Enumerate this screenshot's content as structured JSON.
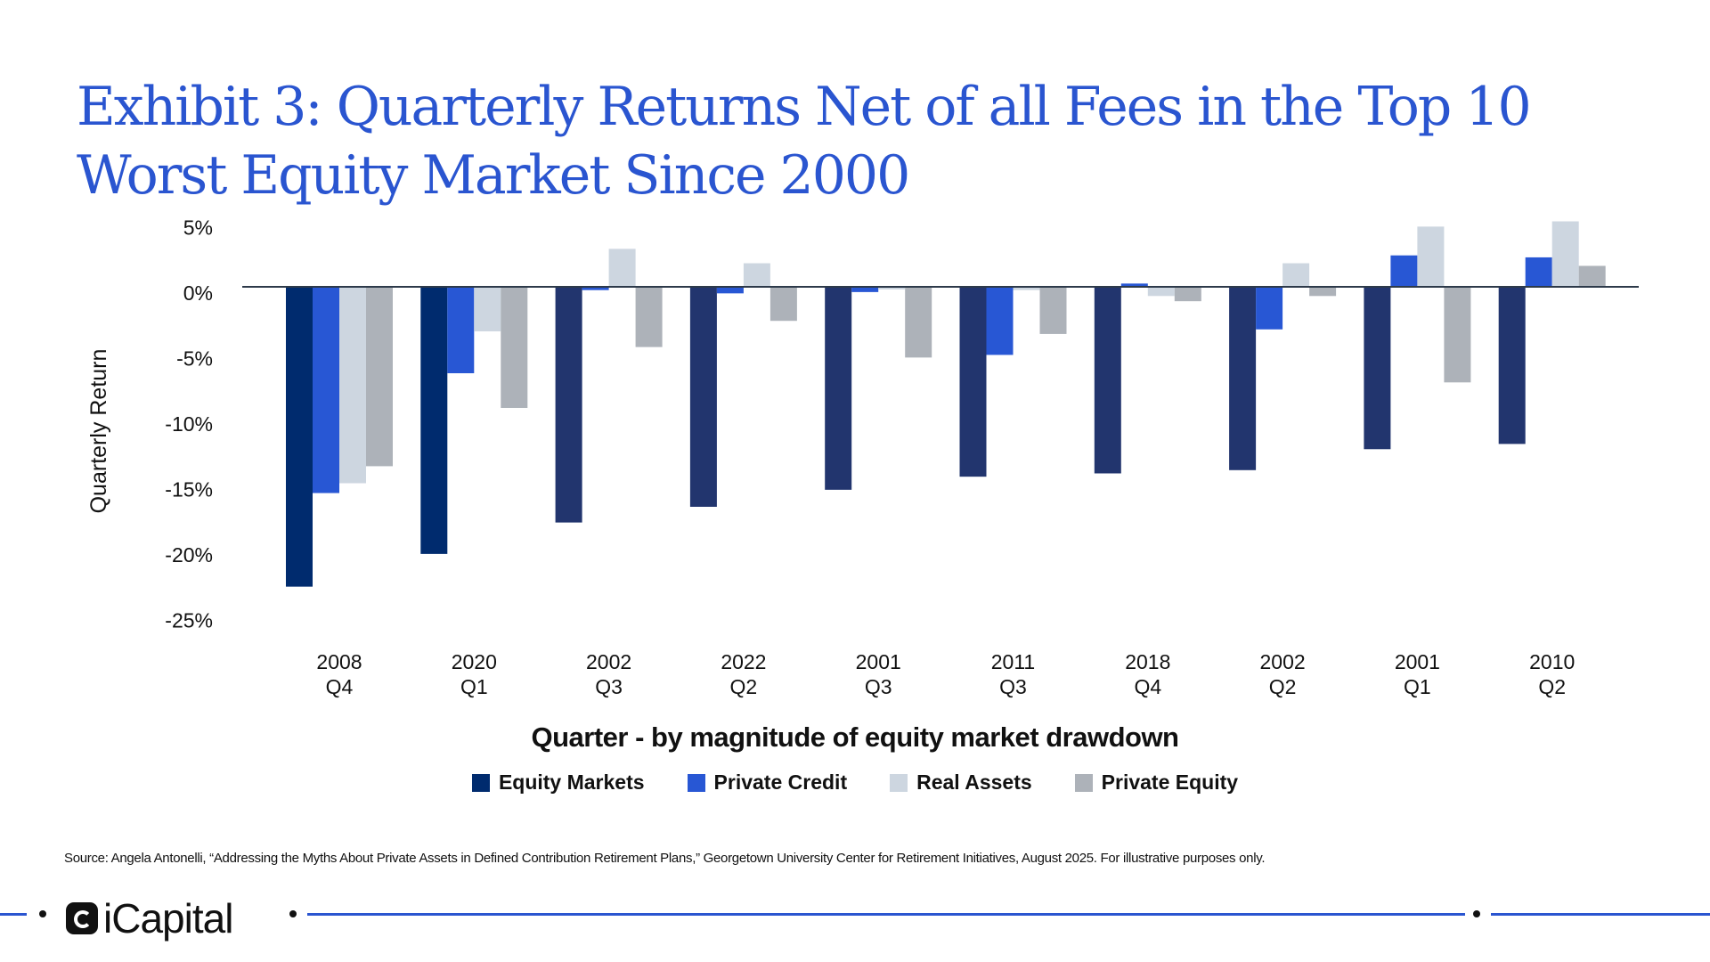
{
  "title": "Exhibit 3: Quarterly Returns Net of all Fees in the Top 10 Worst Equity Market Since 2000",
  "source": "Source: Angela Antonelli, “Addressing the Myths About Private Assets in Defined Contribution Retirement Plans,” Georgetown University Center for Retirement Initiatives, August 2025. For illustrative purposes only.",
  "logo": "iCapital",
  "chart_data": {
    "type": "bar",
    "title": "Exhibit 3: Quarterly Returns Net of all Fees in the Top 10 Worst Equity Market Since 2000",
    "xlabel": "Quarter - by magnitude of equity market drawdown",
    "ylabel": "Quarterly Return",
    "ylim": [
      -25,
      5
    ],
    "yticks": [
      "5%",
      "0%",
      "-5%",
      "-10%",
      "-15%",
      "-20%",
      "-25%"
    ],
    "ytick_values": [
      5,
      0,
      -5,
      -10,
      -15,
      -20,
      -25
    ],
    "grid": false,
    "legend_position": "bottom",
    "categories": [
      [
        "2008",
        "Q4"
      ],
      [
        "2020",
        "Q1"
      ],
      [
        "2002",
        "Q3"
      ],
      [
        "2022",
        "Q2"
      ],
      [
        "2001",
        "Q3"
      ],
      [
        "2011",
        "Q3"
      ],
      [
        "2018",
        "Q4"
      ],
      [
        "2002",
        "Q2"
      ],
      [
        "2001",
        "Q1"
      ],
      [
        "2010",
        "Q2"
      ]
    ],
    "series": [
      {
        "name": "Equity Markets",
        "color": "#22356e",
        "highlight_color": "#002b6e",
        "values": [
          -22.9,
          -20.4,
          -18.0,
          -16.8,
          -15.5,
          -14.5,
          -14.25,
          -14.0,
          -12.4,
          -12.0
        ]
      },
      {
        "name": "Private Credit",
        "color": "#2857d4",
        "values": [
          -15.75,
          -6.6,
          -0.25,
          -0.5,
          -0.4,
          -5.2,
          0.25,
          -3.25,
          2.4,
          2.25
        ]
      },
      {
        "name": "Real Assets",
        "color": "#cdd6e0",
        "values": [
          -15.0,
          -3.4,
          2.9,
          1.8,
          -0.2,
          -0.25,
          -0.7,
          1.8,
          4.6,
          5.0
        ]
      },
      {
        "name": "Private Equity",
        "color": "#adb2b9",
        "values": [
          -13.7,
          -9.25,
          -4.6,
          -2.6,
          -5.4,
          -3.6,
          -1.1,
          -0.7,
          -7.3,
          1.6
        ]
      }
    ]
  }
}
